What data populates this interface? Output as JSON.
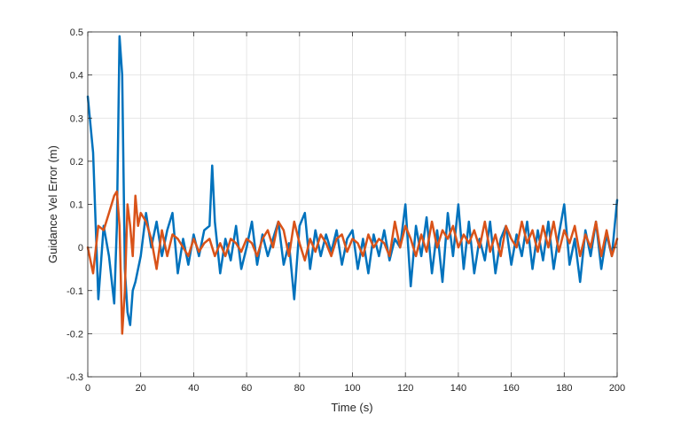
{
  "chart_data": {
    "type": "line",
    "title": "",
    "xlabel": "Time (s)",
    "ylabel": "Guidance Vel Error (m)",
    "xlim": [
      0,
      200
    ],
    "ylim": [
      -0.3,
      0.5
    ],
    "xticks": [
      "0",
      "20",
      "40",
      "60",
      "80",
      "100",
      "120",
      "140",
      "160",
      "180",
      "200"
    ],
    "yticks": [
      "-0.3",
      "-0.2",
      "-0.1",
      "0",
      "0.1",
      "0.2",
      "0.3",
      "0.4",
      "0.5"
    ],
    "grid": true,
    "series": [
      {
        "color": "#0072BD",
        "x": [
          0,
          2,
          4,
          6,
          8,
          10,
          11,
          12,
          13,
          14,
          15,
          16,
          17,
          18,
          20,
          22,
          24,
          26,
          28,
          30,
          32,
          34,
          36,
          38,
          40,
          42,
          44,
          46,
          47,
          48,
          49,
          50,
          52,
          54,
          56,
          58,
          60,
          62,
          64,
          66,
          68,
          70,
          72,
          74,
          76,
          78,
          80,
          82,
          84,
          86,
          88,
          90,
          92,
          94,
          96,
          98,
          100,
          102,
          104,
          106,
          108,
          110,
          112,
          114,
          116,
          118,
          120,
          122,
          124,
          126,
          128,
          130,
          132,
          134,
          136,
          138,
          140,
          142,
          144,
          146,
          148,
          150,
          152,
          154,
          156,
          158,
          160,
          162,
          164,
          166,
          168,
          170,
          172,
          174,
          176,
          178,
          180,
          182,
          184,
          186,
          188,
          190,
          192,
          194,
          196,
          198,
          200
        ],
        "y": [
          0.35,
          0.22,
          -0.12,
          0.05,
          -0.02,
          -0.13,
          0.05,
          0.49,
          0.4,
          -0.05,
          -0.15,
          -0.18,
          -0.1,
          -0.08,
          -0.02,
          0.08,
          0.0,
          0.06,
          -0.02,
          0.04,
          0.08,
          -0.06,
          0.02,
          -0.04,
          0.03,
          -0.02,
          0.04,
          0.05,
          0.19,
          0.06,
          0.0,
          -0.06,
          0.02,
          -0.03,
          0.05,
          -0.05,
          0.0,
          0.06,
          -0.04,
          0.03,
          -0.02,
          0.02,
          0.06,
          -0.04,
          0.01,
          -0.12,
          0.05,
          0.08,
          -0.05,
          0.04,
          -0.02,
          0.03,
          -0.01,
          0.04,
          -0.04,
          0.02,
          0.04,
          -0.05,
          0.02,
          -0.06,
          0.03,
          -0.02,
          0.04,
          -0.03,
          0.02,
          0.0,
          0.1,
          -0.09,
          0.05,
          -0.02,
          0.07,
          -0.06,
          0.04,
          -0.08,
          0.08,
          -0.02,
          0.1,
          -0.05,
          0.06,
          -0.06,
          0.02,
          -0.03,
          0.06,
          -0.06,
          0.02,
          0.05,
          -0.04,
          0.03,
          -0.02,
          0.06,
          -0.05,
          0.04,
          -0.03,
          0.06,
          -0.05,
          0.03,
          0.1,
          -0.04,
          0.02,
          -0.08,
          0.04,
          -0.02,
          0.06,
          -0.05,
          0.03,
          -0.02,
          0.11
        ]
      },
      {
        "color": "#D95319",
        "x": [
          0,
          2,
          4,
          6,
          8,
          10,
          11,
          12,
          13,
          14,
          15,
          16,
          17,
          18,
          19,
          20,
          22,
          24,
          26,
          28,
          30,
          32,
          34,
          36,
          38,
          40,
          42,
          44,
          46,
          48,
          50,
          52,
          54,
          56,
          58,
          60,
          62,
          64,
          66,
          68,
          70,
          72,
          74,
          76,
          78,
          80,
          82,
          84,
          86,
          88,
          90,
          92,
          94,
          96,
          98,
          100,
          102,
          104,
          106,
          108,
          110,
          112,
          114,
          116,
          118,
          120,
          122,
          124,
          126,
          128,
          130,
          132,
          134,
          136,
          138,
          140,
          142,
          144,
          146,
          148,
          150,
          152,
          154,
          156,
          158,
          160,
          162,
          164,
          166,
          168,
          170,
          172,
          174,
          176,
          178,
          180,
          182,
          184,
          186,
          188,
          190,
          192,
          194,
          196,
          198,
          200
        ],
        "y": [
          0.0,
          -0.06,
          0.05,
          0.04,
          0.08,
          0.12,
          0.13,
          0.05,
          -0.2,
          -0.1,
          0.1,
          0.05,
          -0.02,
          0.12,
          0.05,
          0.08,
          0.06,
          0.02,
          -0.05,
          0.04,
          -0.02,
          0.03,
          0.02,
          0.0,
          -0.02,
          0.02,
          -0.01,
          0.01,
          0.02,
          -0.02,
          0.01,
          -0.02,
          0.02,
          0.01,
          -0.01,
          0.02,
          0.01,
          -0.02,
          0.02,
          0.04,
          0.0,
          0.06,
          0.04,
          -0.02,
          0.06,
          0.01,
          -0.03,
          0.02,
          -0.01,
          0.03,
          0.01,
          -0.02,
          0.02,
          0.03,
          -0.01,
          0.02,
          0.01,
          -0.02,
          0.03,
          0.0,
          0.02,
          0.01,
          -0.02,
          0.06,
          0.0,
          0.05,
          0.02,
          -0.02,
          0.03,
          -0.01,
          0.06,
          0.0,
          0.04,
          0.02,
          0.05,
          0.0,
          0.03,
          0.01,
          0.04,
          0.0,
          0.06,
          -0.01,
          0.03,
          -0.02,
          0.05,
          0.02,
          0.0,
          0.06,
          0.01,
          0.04,
          -0.01,
          0.05,
          0.0,
          0.06,
          -0.01,
          0.04,
          0.01,
          0.05,
          -0.02,
          0.03,
          0.0,
          0.06,
          -0.02,
          0.04,
          -0.02,
          0.02
        ]
      }
    ]
  }
}
